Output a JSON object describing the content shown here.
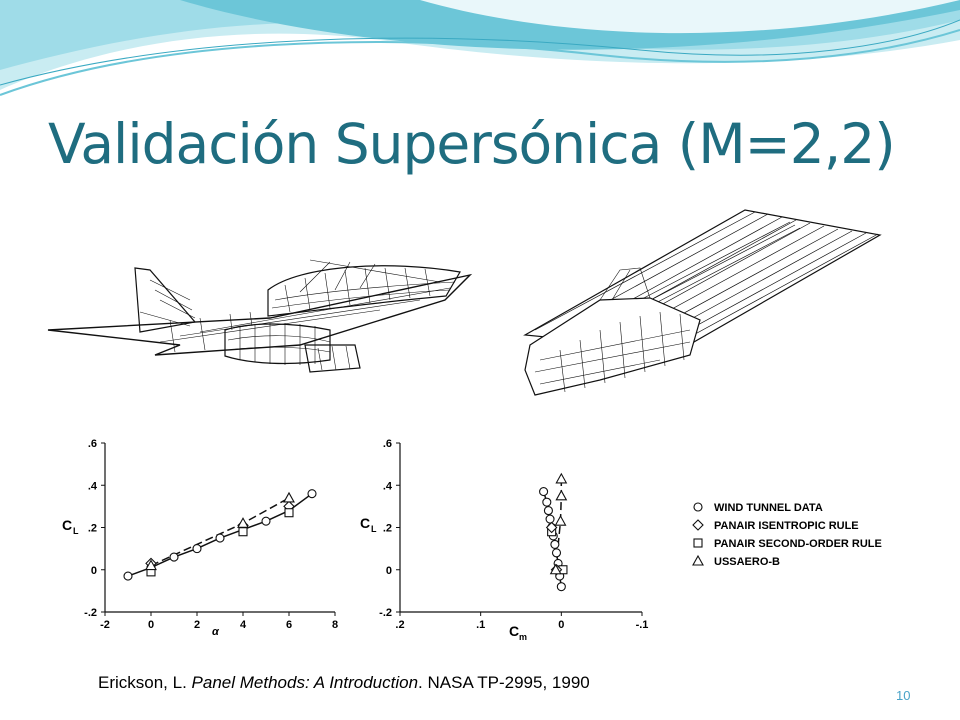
{
  "slide": {
    "title": "Validación Supersónica (M=2,2)",
    "slide_number": "10",
    "citation": {
      "authors": "Erickson, L.",
      "work": "Panel Methods: A Introduction",
      "rest": ". NASA TP-2995, 1990"
    },
    "colors": {
      "title": "#1f6d80",
      "banner_light": "#c9ecf2",
      "banner_mid": "#6cc6d8",
      "slide_number": "#4aa3c8"
    }
  },
  "images": [
    {
      "name": "aircraft-panel-mesh-side-view",
      "description": "paneled aircraft model"
    },
    {
      "name": "aircraft-panel-mesh-wake-view",
      "description": "paneled aircraft model with wake"
    }
  ],
  "chart_data": [
    {
      "type": "scatter",
      "title": "",
      "xlabel": "α",
      "ylabel": "C",
      "ylabel_sub": "L",
      "xlim": [
        -2,
        8
      ],
      "ylim": [
        -0.2,
        0.6
      ],
      "xticks": [
        "-2",
        "0",
        "2",
        "4",
        "6",
        "8"
      ],
      "yticks": [
        "-.2",
        "0",
        ".2",
        ".4",
        ".6"
      ],
      "series": [
        {
          "name": "WIND TUNNEL DATA",
          "marker": "circle",
          "points": [
            [
              -1,
              -0.03
            ],
            [
              0,
              0.01
            ],
            [
              1,
              0.06
            ],
            [
              2,
              0.1
            ],
            [
              3,
              0.15
            ],
            [
              4,
              0.19
            ],
            [
              5,
              0.23
            ],
            [
              6,
              0.28
            ],
            [
              7,
              0.36
            ]
          ]
        },
        {
          "name": "PANAIR ISENTROPIC RULE",
          "marker": "diamond",
          "points": [
            [
              0,
              0.03
            ],
            [
              4,
              0.21
            ],
            [
              6,
              0.3
            ]
          ]
        },
        {
          "name": "PANAIR SECOND-ORDER RULE",
          "marker": "square",
          "points": [
            [
              0,
              -0.01
            ],
            [
              4,
              0.18
            ],
            [
              6,
              0.27
            ]
          ]
        },
        {
          "name": "USSAERO-B",
          "marker": "triangle",
          "points": [
            [
              0,
              0.02
            ],
            [
              4,
              0.22
            ],
            [
              6,
              0.34
            ]
          ]
        }
      ]
    },
    {
      "type": "scatter",
      "title": "",
      "xlabel": "C",
      "xlabel_sub": "m",
      "ylabel": "C",
      "ylabel_sub": "L",
      "xlim": [
        0.2,
        -0.1
      ],
      "ylim": [
        -0.2,
        0.6
      ],
      "xticks": [
        ".2",
        ".1",
        "0",
        "-.1"
      ],
      "yticks": [
        "-.2",
        "0",
        ".2",
        ".4",
        ".6"
      ],
      "series": [
        {
          "name": "WIND TUNNEL DATA",
          "marker": "circle",
          "points": [
            [
              0.022,
              0.37
            ],
            [
              0.018,
              0.32
            ],
            [
              0.016,
              0.28
            ],
            [
              0.014,
              0.24
            ],
            [
              0.012,
              0.2
            ],
            [
              0.01,
              0.16
            ],
            [
              0.008,
              0.12
            ],
            [
              0.006,
              0.08
            ],
            [
              0.004,
              0.03
            ],
            [
              0.002,
              -0.03
            ],
            [
              0.0,
              -0.08
            ]
          ]
        },
        {
          "name": "PANAIR SECOND-ORDER RULE",
          "marker": "square",
          "points": [
            [
              0.012,
              0.18
            ],
            [
              -0.002,
              0.0
            ]
          ]
        },
        {
          "name": "PANAIR ISENTROPIC RULE",
          "marker": "diamond",
          "points": [
            [
              0.012,
              0.2
            ],
            [
              0.006,
              0.0
            ]
          ]
        },
        {
          "name": "USSAERO-B",
          "marker": "triangle",
          "points": [
            [
              0.0,
              0.43
            ],
            [
              0.0,
              0.35
            ],
            [
              0.001,
              0.23
            ],
            [
              0.007,
              0.0
            ]
          ]
        }
      ]
    }
  ],
  "legend": {
    "placement": "right",
    "entries": [
      {
        "marker": "circle",
        "label": "WIND TUNNEL DATA"
      },
      {
        "marker": "diamond",
        "label": "PANAIR ISENTROPIC RULE"
      },
      {
        "marker": "square",
        "label": "PANAIR SECOND-ORDER RULE"
      },
      {
        "marker": "triangle",
        "label": "USSAERO-B"
      }
    ]
  }
}
